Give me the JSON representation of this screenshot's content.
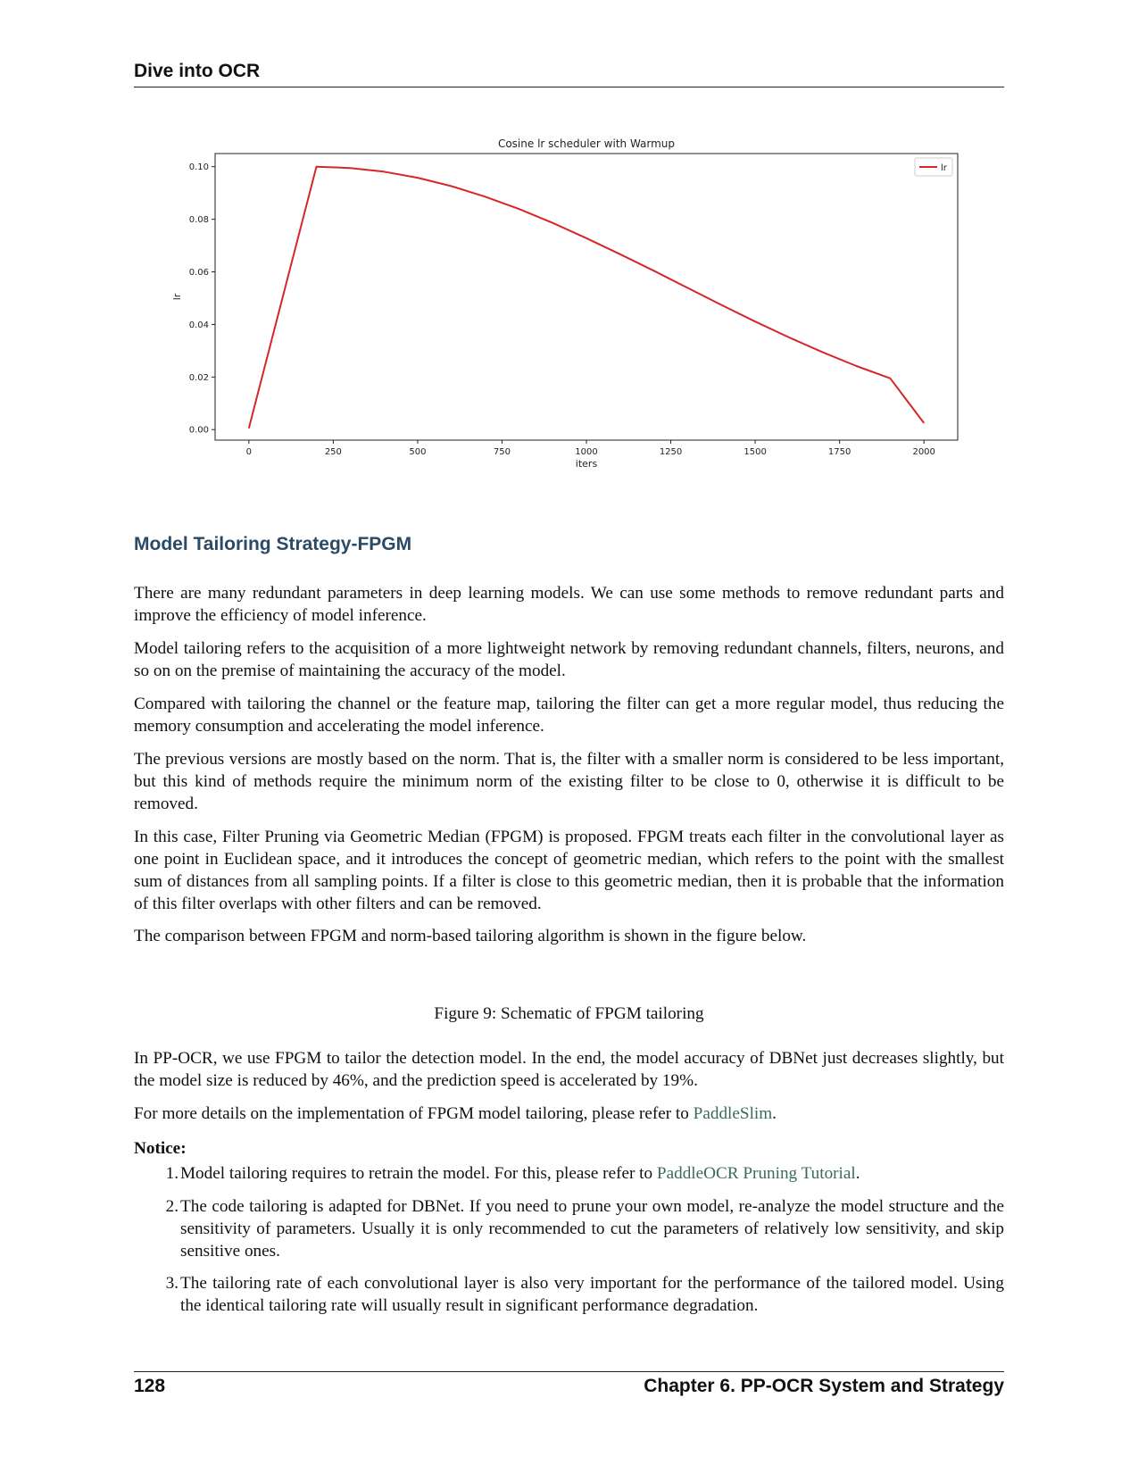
{
  "header": {
    "title": "Dive into OCR"
  },
  "chart_data": {
    "type": "line",
    "title": "Cosine lr scheduler with Warmup",
    "xlabel": "iters",
    "ylabel": "lr",
    "xlim": [
      -100,
      2100
    ],
    "ylim": [
      -0.004,
      0.105
    ],
    "xticks": [
      0,
      250,
      500,
      750,
      1000,
      1250,
      1500,
      1750,
      2000
    ],
    "xtick_labels": [
      "0",
      "250",
      "500",
      "750",
      "1000",
      "1250",
      "1500",
      "1750",
      "2000"
    ],
    "yticks": [
      0.0,
      0.02,
      0.04,
      0.06,
      0.08,
      0.1
    ],
    "ytick_labels": [
      "0.00",
      "0.02",
      "0.04",
      "0.06",
      "0.08",
      "0.10"
    ],
    "grid": false,
    "legend_position": "top-right",
    "series": [
      {
        "name": "lr",
        "color": "#d62728",
        "x": [
          0,
          200,
          300,
          400,
          500,
          600,
          700,
          800,
          900,
          1000,
          1100,
          1200,
          1300,
          1400,
          1500,
          1600,
          1700,
          1800,
          1900,
          2000
        ],
        "y": [
          0.0005,
          0.1,
          0.0995,
          0.0981,
          0.0958,
          0.0926,
          0.0886,
          0.0839,
          0.0786,
          0.0728,
          0.0667,
          0.0604,
          0.0539,
          0.0474,
          0.0411,
          0.0351,
          0.0294,
          0.0242,
          0.0195,
          0.0025
        ]
      }
    ]
  },
  "section": {
    "title": "Model Tailoring Strategy-FPGM"
  },
  "paragraphs": {
    "p1": "There are many redundant parameters in deep learning models. We can use some methods to remove redundant parts and improve the efficiency of model inference.",
    "p2": "Model tailoring refers to the acquisition of a more lightweight network by removing redundant channels, filters, neurons, and so on on the premise of maintaining the accuracy of the model.",
    "p3": "Compared with tailoring the channel or the feature map, tailoring the filter can get a more regular model, thus reducing the memory consumption and accelerating the model inference.",
    "p4": "The previous versions are mostly based on the norm. That is, the filter with a smaller norm is considered to be less important, but this kind of methods require the minimum norm of the existing filter to be close to 0, otherwise it is difficult to be removed.",
    "p5": "In this case, Filter Pruning via Geometric Median (FPGM) is proposed. FPGM treats each filter in the convolutional layer as one point in Euclidean space, and it introduces the concept of geometric median, which refers to the point with the smallest sum of distances from all sampling points. If a filter is close to this geometric median, then it is probable that the information of this filter overlaps with other filters and can be removed.",
    "p6": "The comparison between FPGM and norm-based tailoring algorithm is shown in the figure below.",
    "caption": "Figure 9: Schematic of FPGM tailoring",
    "p7": "In PP-OCR, we use FPGM to tailor the detection model. In the end, the model accuracy of DBNet just decreases slightly, but the model size is reduced by 46%, and the prediction speed is accelerated by 19%.",
    "p8_pre": "For more details on the implementation of FPGM model tailoring, please refer to ",
    "p8_link": "PaddleSlim",
    "p8_post": "."
  },
  "notice": {
    "label": "Notice:",
    "items": [
      {
        "num": "1.",
        "pre": "Model tailoring requires to retrain the model. For this, please refer to ",
        "link": "PaddleOCR Pruning Tutorial",
        "post": "."
      },
      {
        "num": "2.",
        "text": "The code tailoring is adapted for DBNet. If you need to prune your own model, re-analyze the model structure and the sensitivity of parameters. Usually it is only recommended to cut the parameters of relatively low sensitivity, and skip sensitive ones."
      },
      {
        "num": "3.",
        "text": "The tailoring rate of each convolutional layer is also very important for the performance of the tailored model. Using the identical tailoring rate will usually result in significant performance degradation."
      }
    ]
  },
  "footer": {
    "page_number": "128",
    "chapter": "Chapter 6. PP-OCR System and Strategy"
  }
}
